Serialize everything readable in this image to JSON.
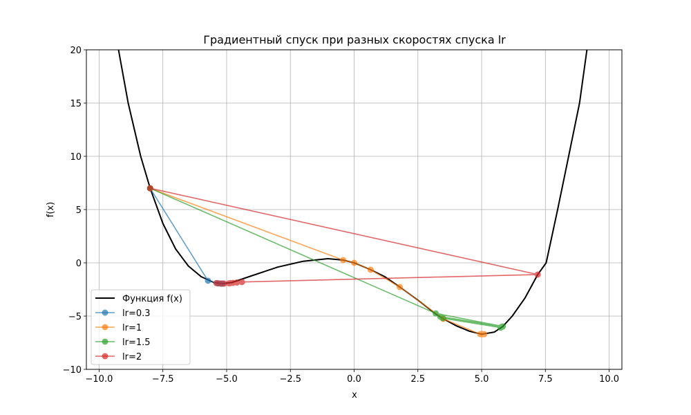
{
  "chart_data": {
    "type": "line",
    "title": "Градиентный спуск при разных скоростях спуска lr",
    "xlabel": "x",
    "ylabel": "f(x)",
    "xlim": [
      -10.5,
      10.5
    ],
    "ylim": [
      -10,
      20
    ],
    "xticks": [
      -10.0,
      -7.5,
      -5.0,
      -2.5,
      0.0,
      2.5,
      5.0,
      7.5,
      10.0
    ],
    "xtick_labels": [
      "−10.0",
      "−7.5",
      "−5.0",
      "−2.5",
      "0.0",
      "2.5",
      "5.0",
      "7.5",
      "10.0"
    ],
    "yticks": [
      -10,
      -5,
      0,
      5,
      10,
      15,
      20
    ],
    "ytick_labels": [
      "−10",
      "−5",
      "0",
      "5",
      "10",
      "15",
      "20"
    ],
    "grid": true,
    "legend_position": "lower left",
    "function_curve": {
      "name": "Функция f(x)",
      "color": "#000000",
      "x": [
        -9.24,
        -8.86,
        -8.37,
        -8.0,
        -7.5,
        -7.0,
        -6.5,
        -6.0,
        -5.5,
        -5.17,
        -4.8,
        -4.0,
        -3.0,
        -2.0,
        -1.03,
        -0.43,
        0.0,
        0.65,
        1.2,
        1.79,
        2.5,
        3.17,
        3.5,
        4.0,
        4.5,
        5.0,
        5.5,
        5.83,
        6.2,
        6.7,
        7.2,
        7.53,
        7.98,
        8.41,
        8.84,
        9.13
      ],
      "y": [
        20,
        15,
        10,
        7.0,
        3.7,
        1.3,
        -0.3,
        -1.3,
        -1.85,
        -1.95,
        -1.85,
        -1.2,
        -0.4,
        0.15,
        0.39,
        0.26,
        0.0,
        -0.65,
        -1.3,
        -2.27,
        -3.5,
        -4.75,
        -5.26,
        -5.9,
        -6.4,
        -6.7,
        -6.5,
        -5.97,
        -5.0,
        -3.3,
        -1.1,
        0.0,
        5.0,
        10.0,
        15.0,
        20.0
      ]
    },
    "series": [
      {
        "name": "lr=0.3",
        "color": "#1f77b4",
        "x": [
          -8.0,
          -5.73,
          -5.35,
          -5.22,
          -5.18,
          -5.17,
          -5.17
        ],
        "y": [
          7.0,
          -1.68,
          -1.92,
          -1.95,
          -1.95,
          -1.95,
          -1.95
        ]
      },
      {
        "name": "lr=1",
        "color": "#ff7f0e",
        "x": [
          -8.0,
          -0.43,
          0.0,
          0.65,
          1.79,
          3.5,
          4.95,
          5.1,
          5.0,
          5.05,
          5.02
        ],
        "y": [
          7.0,
          0.26,
          0.0,
          -0.65,
          -2.27,
          -5.26,
          -6.7,
          -6.7,
          -6.7,
          -6.7,
          -6.7
        ]
      },
      {
        "name": "lr=1.5",
        "color": "#2ca02c",
        "x": [
          -8.0,
          3.2,
          5.83,
          3.38,
          5.8,
          3.42,
          5.78,
          3.45,
          5.76,
          3.48,
          5.74
        ],
        "y": [
          7.0,
          -4.75,
          -5.97,
          -5.05,
          -6.0,
          -5.1,
          -6.02,
          -5.15,
          -6.05,
          -5.2,
          -6.08
        ]
      },
      {
        "name": "lr=2",
        "color": "#d62728",
        "x": [
          -8.0,
          7.2,
          -4.4,
          -5.4,
          -4.6,
          -5.3,
          -4.75,
          -5.2,
          -4.85,
          -5.1,
          -4.9
        ],
        "y": [
          7.0,
          -1.1,
          -1.8,
          -1.9,
          -1.85,
          -1.93,
          -1.88,
          -1.95,
          -1.9,
          -1.95,
          -1.92
        ]
      }
    ]
  },
  "legend": {
    "items": [
      {
        "label": "Функция f(x)",
        "color": "#000000",
        "marker": false
      },
      {
        "label": "lr=0.3",
        "color": "#1f77b4",
        "marker": true
      },
      {
        "label": "lr=1",
        "color": "#ff7f0e",
        "marker": true
      },
      {
        "label": "lr=1.5",
        "color": "#2ca02c",
        "marker": true
      },
      {
        "label": "lr=2",
        "color": "#d62728",
        "marker": true
      }
    ]
  }
}
